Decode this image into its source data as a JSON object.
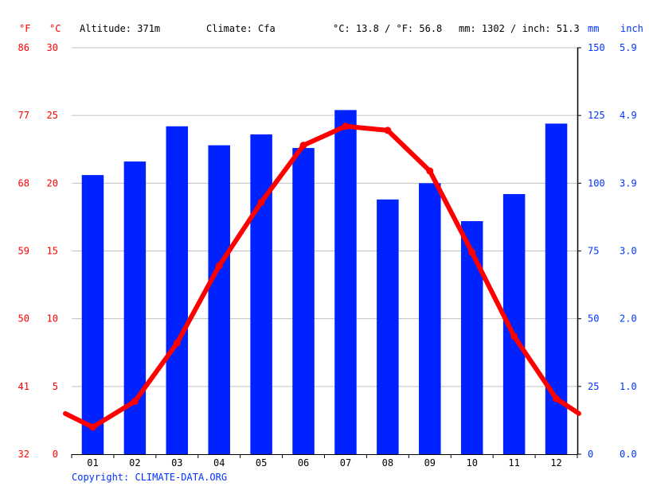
{
  "header": {
    "unit_f": "°F",
    "unit_c": "°C",
    "altitude": "Altitude: 371m",
    "climate": "Climate: Cfa",
    "temp_avg": "°C: 13.8 / °F: 56.8",
    "precip_total": "mm: 1302 / inch: 51.3",
    "unit_mm": "mm",
    "unit_inch": "inch"
  },
  "footer": {
    "copyright": "Copyright: CLIMATE-DATA.ORG"
  },
  "colors": {
    "temperature": "#ff0000",
    "precipitation": "#0022ff",
    "grid": "#c0c0c0",
    "axis": "#000000"
  },
  "chart_data": {
    "type": "bar",
    "categories": [
      "01",
      "02",
      "03",
      "04",
      "05",
      "06",
      "07",
      "08",
      "09",
      "10",
      "11",
      "12"
    ],
    "series": [
      {
        "type": "bar",
        "axis": "right",
        "values": [
          103,
          108,
          121,
          114,
          118,
          113,
          127,
          94,
          100,
          86,
          96,
          122
        ]
      },
      {
        "type": "line",
        "axis": "left",
        "values": [
          2.0,
          3.9,
          8.2,
          13.9,
          18.6,
          22.8,
          24.2,
          23.9,
          20.9,
          14.9,
          8.7,
          4.1
        ]
      }
    ],
    "line_edge_values": {
      "start": 3.0,
      "end": 3.0
    },
    "ylim_left": [
      0,
      30
    ],
    "ylim_right": [
      0,
      150
    ],
    "ticks_c": [
      "0",
      "5",
      "10",
      "15",
      "20",
      "25",
      "30"
    ],
    "ticks_f": [
      "32",
      "41",
      "50",
      "59",
      "68",
      "77",
      "86"
    ],
    "ticks_mm": [
      "0",
      "25",
      "50",
      "75",
      "100",
      "125",
      "150"
    ],
    "ticks_inch": [
      "0.0",
      "1.0",
      "2.0",
      "3.0",
      "3.9",
      "4.9",
      "5.9"
    ],
    "grid": true
  }
}
